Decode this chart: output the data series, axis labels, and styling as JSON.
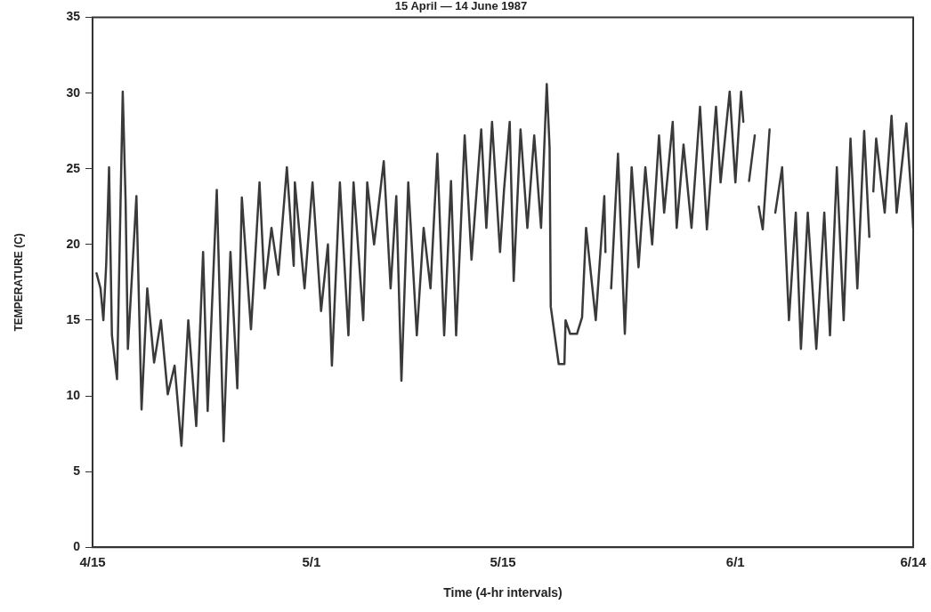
{
  "chart_data": {
    "type": "line",
    "title": "15 April — 14 June 1987",
    "xlabel": "Time (4-hr intervals)",
    "ylabel": "TEMPERATURE (C)",
    "xlim": [
      "1987-04-15",
      "1987-06-14"
    ],
    "xticks": [
      {
        "value": "1987-04-15",
        "label": "4/15"
      },
      {
        "value": "1987-05-01",
        "label": "5/1"
      },
      {
        "value": "1987-05-15",
        "label": "5/15"
      },
      {
        "value": "1987-06-01",
        "label": "6/1"
      },
      {
        "value": "1987-06-14",
        "label": "6/14"
      }
    ],
    "ylim": [
      0,
      35
    ],
    "yticks": [
      0,
      5,
      10,
      15,
      20,
      25,
      30,
      35
    ],
    "grid": false,
    "legend": false,
    "marker": "none",
    "line_style": "solid",
    "series": [
      {
        "color": "#3a3a3a",
        "x": [
          "1987-04-15T07:00",
          "1987-04-15T14:00",
          "1987-04-15T19:00",
          "1987-04-16T00:00",
          "1987-04-16T05:00",
          "1987-04-16T10:00",
          "1987-04-16T19:00",
          "1987-04-17T05:00",
          "1987-04-17T10:00",
          "1987-04-17T14:00",
          "1987-04-18T05:00",
          "1987-04-18T14:00",
          "1987-04-19T00:00",
          "1987-04-19T12:00",
          "1987-04-20T00:00",
          "1987-04-20T12:00",
          "1987-04-21T00:00",
          "1987-04-21T12:00",
          "1987-04-22T00:00",
          "1987-04-22T14:00",
          "1987-04-23T02:00",
          "1987-04-23T10:00",
          "1987-04-24T02:00",
          "1987-04-24T14:00",
          "1987-04-25T02:00",
          "1987-04-25T14:00",
          "1987-04-25T22:00",
          "1987-04-26T14:00",
          "1987-04-27T05:00",
          "1987-04-27T14:00",
          "1987-04-28T02:00",
          "1987-04-28T14:00",
          "1987-04-29T05:00",
          "1987-04-29T17:00",
          "1987-04-29T19:00",
          "1987-04-30T12:00",
          "1987-05-01T02:00",
          "1987-05-01T17:00",
          "1987-05-02T05:00",
          "1987-05-02T12:00",
          "1987-05-03T02:00",
          "1987-05-03T17:00",
          "1987-05-04T02:00",
          "1987-05-04T19:00",
          "1987-05-05T02:00",
          "1987-05-05T14:00",
          "1987-05-06T07:00",
          "1987-05-06T19:00",
          "1987-05-07T05:00",
          "1987-05-07T14:00",
          "1987-05-08T02:00",
          "1987-05-08T17:00",
          "1987-05-09T05:00",
          "1987-05-09T17:00",
          "1987-05-10T05:00",
          "1987-05-10T17:00",
          "1987-05-11T05:00",
          "1987-05-11T14:00",
          "1987-05-12T05:00",
          "1987-05-12T17:00",
          "1987-05-13T10:00",
          "1987-05-13T19:00",
          "1987-05-14T05:00",
          "1987-05-14T19:00",
          "1987-05-15T02:00",
          "1987-05-15T12:00",
          "1987-05-15T19:00",
          "1987-05-16T07:00",
          "1987-05-16T19:00",
          "1987-05-17T07:00",
          "1987-05-17T19:00",
          "1987-05-18T05:00",
          "1987-05-18T10:00",
          "1987-05-18T12:00",
          "1987-05-19T02:00",
          "1987-05-19T12:00",
          "1987-05-19T14:00",
          "1987-05-19T22:00",
          "1987-05-20T10:00",
          "1987-05-20T19:00",
          "1987-05-21T02:00",
          "1987-05-21T19:00",
          "1987-05-22T10:00",
          "1987-05-22T12:00",
          "1987-05-22T17:00",
          "1987-05-22T22:00",
          "1987-05-23T10:00",
          "1987-05-23T22:00",
          "1987-05-24T10:00",
          "1987-05-24T22:00",
          "1987-05-25T10:00",
          "1987-05-25T22:00",
          "1987-05-26T10:00",
          "1987-05-26T19:00",
          "1987-05-27T10:00",
          "1987-05-27T17:00",
          "1987-05-28T05:00",
          "1987-05-28T19:00",
          "1987-05-29T10:00",
          "1987-05-29T22:00",
          "1987-05-30T14:00",
          "1987-05-30T22:00",
          "1987-05-31T14:00",
          "1987-06-01T00:00",
          "1987-06-01T10:00",
          "1987-06-01T14:00",
          "1987-06-01T19:00",
          "1987-06-02T00:00",
          "1987-06-02T10:00",
          "1987-06-02T14:00",
          "1987-06-02T17:00",
          "1987-06-03T00:00",
          "1987-06-03T12:00",
          "1987-06-03T17:00",
          "1987-06-03T22:00",
          "1987-06-04T10:00",
          "1987-06-04T22:00",
          "1987-06-05T10:00",
          "1987-06-05T19:00",
          "1987-06-06T07:00",
          "1987-06-06T22:00",
          "1987-06-07T12:00",
          "1987-06-07T22:00",
          "1987-06-08T10:00",
          "1987-06-08T22:00",
          "1987-06-09T10:00",
          "1987-06-09T22:00",
          "1987-06-10T10:00",
          "1987-06-10T19:00",
          "1987-06-11T00:00",
          "1987-06-11T02:00",
          "1987-06-11T07:00",
          "1987-06-11T22:00",
          "1987-06-12T10:00",
          "1987-06-12T19:00",
          "1987-06-13T12:00",
          "1987-06-13T22:00",
          "1987-06-14T00:00"
        ],
        "values": [
          18.1,
          17.1,
          15.0,
          18.7,
          25.1,
          14.0,
          11.1,
          30.1,
          22.9,
          13.1,
          23.2,
          9.1,
          17.1,
          12.2,
          15.0,
          10.1,
          12.0,
          6.7,
          15.0,
          8.0,
          19.5,
          9.0,
          23.6,
          7.0,
          19.5,
          10.5,
          23.1,
          14.4,
          24.1,
          17.1,
          21.1,
          18.0,
          25.1,
          18.6,
          24.1,
          17.1,
          24.1,
          15.6,
          20.0,
          12.0,
          24.1,
          14.0,
          24.1,
          15.0,
          24.1,
          20.0,
          25.5,
          17.1,
          23.2,
          11.0,
          24.1,
          14.0,
          21.1,
          17.1,
          26.0,
          14.0,
          24.2,
          14.0,
          27.2,
          19.0,
          27.6,
          21.1,
          28.1,
          19.5,
          23.6,
          28.1,
          17.6,
          27.6,
          21.1,
          27.2,
          21.1,
          30.6,
          26.4,
          15.9,
          12.1,
          12.1,
          15.0,
          14.1,
          14.1,
          15.2,
          21.1,
          15.0,
          23.2,
          19.5,
          null,
          17.1,
          26.0,
          14.1,
          25.1,
          18.5,
          25.1,
          20.0,
          27.2,
          22.1,
          28.1,
          21.1,
          26.6,
          21.1,
          29.1,
          21.0,
          29.1,
          24.1,
          30.1,
          24.1,
          30.1,
          28.1,
          null,
          24.2,
          27.2,
          null,
          22.5,
          21.0,
          27.6,
          null,
          22.1,
          25.1,
          15.0,
          22.1,
          13.1,
          22.1,
          13.1,
          22.1,
          14.0,
          25.1,
          15.0,
          27.0,
          17.1,
          27.5,
          20.5,
          null,
          23.5,
          27.0,
          22.1,
          28.5,
          22.1,
          28.0,
          22.5,
          21.1
        ]
      }
    ]
  }
}
